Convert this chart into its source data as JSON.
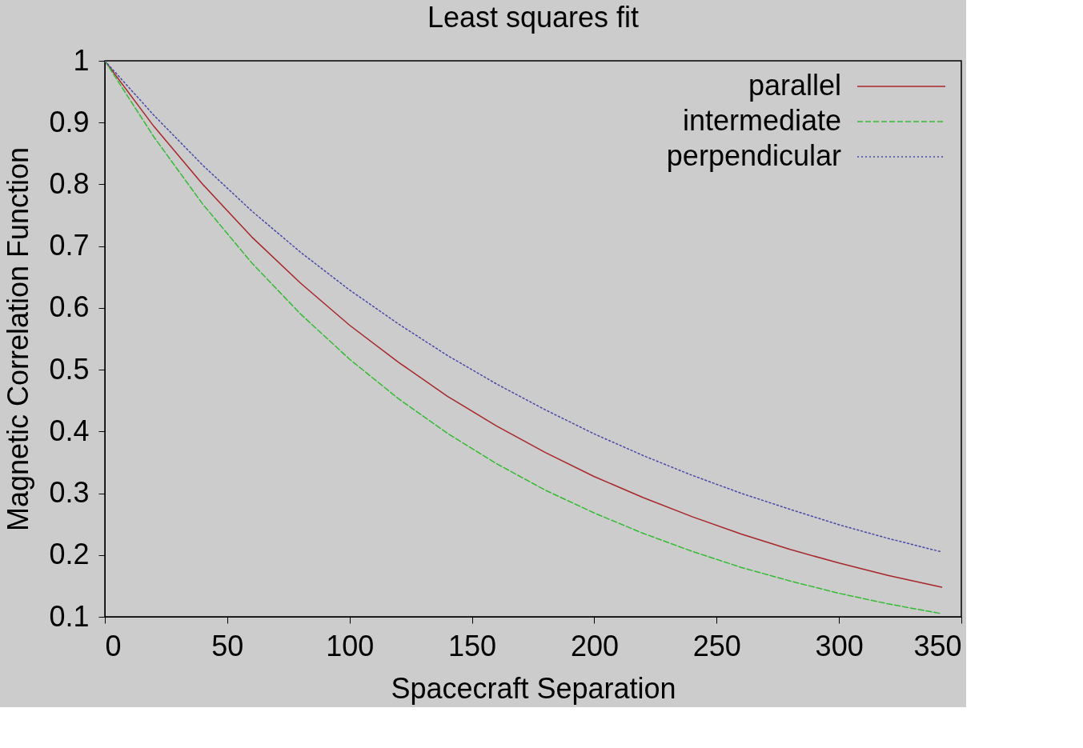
{
  "chart_data": {
    "type": "line",
    "title": "Least squares fit",
    "xlabel": "Spacecraft Separation",
    "ylabel": "Magnetic Correlation Function",
    "x": [
      0,
      20,
      40,
      60,
      80,
      100,
      120,
      140,
      160,
      180,
      200,
      220,
      240,
      260,
      280,
      300,
      320,
      342
    ],
    "series": [
      {
        "name": "parallel",
        "color": "#a8262a",
        "line_style": "solid",
        "values": [
          1.0,
          0.894,
          0.8,
          0.715,
          0.64,
          0.572,
          0.512,
          0.457,
          0.409,
          0.366,
          0.327,
          0.293,
          0.262,
          0.234,
          0.209,
          0.187,
          0.167,
          0.148
        ]
      },
      {
        "name": "intermediate",
        "color": "#33bb33",
        "line_style": "dashed",
        "values": [
          1.0,
          0.877,
          0.768,
          0.673,
          0.59,
          0.517,
          0.453,
          0.397,
          0.348,
          0.305,
          0.268,
          0.235,
          0.206,
          0.18,
          0.158,
          0.138,
          0.121,
          0.105
        ]
      },
      {
        "name": "perpendicular",
        "color": "#4848a8",
        "line_style": "dotted",
        "values": [
          1.0,
          0.912,
          0.831,
          0.757,
          0.69,
          0.629,
          0.574,
          0.523,
          0.477,
          0.435,
          0.396,
          0.361,
          0.329,
          0.3,
          0.274,
          0.249,
          0.227,
          0.205
        ]
      }
    ],
    "xlim": [
      0,
      350
    ],
    "xticks": [
      0,
      50,
      100,
      150,
      200,
      250,
      300,
      350
    ],
    "ylim": [
      0.1,
      1
    ],
    "yticks": [
      0.1,
      0.2,
      0.3,
      0.4,
      0.5,
      0.6,
      0.7,
      0.8,
      0.9,
      1
    ],
    "grid": false,
    "legend": "top right",
    "marker": "none"
  }
}
